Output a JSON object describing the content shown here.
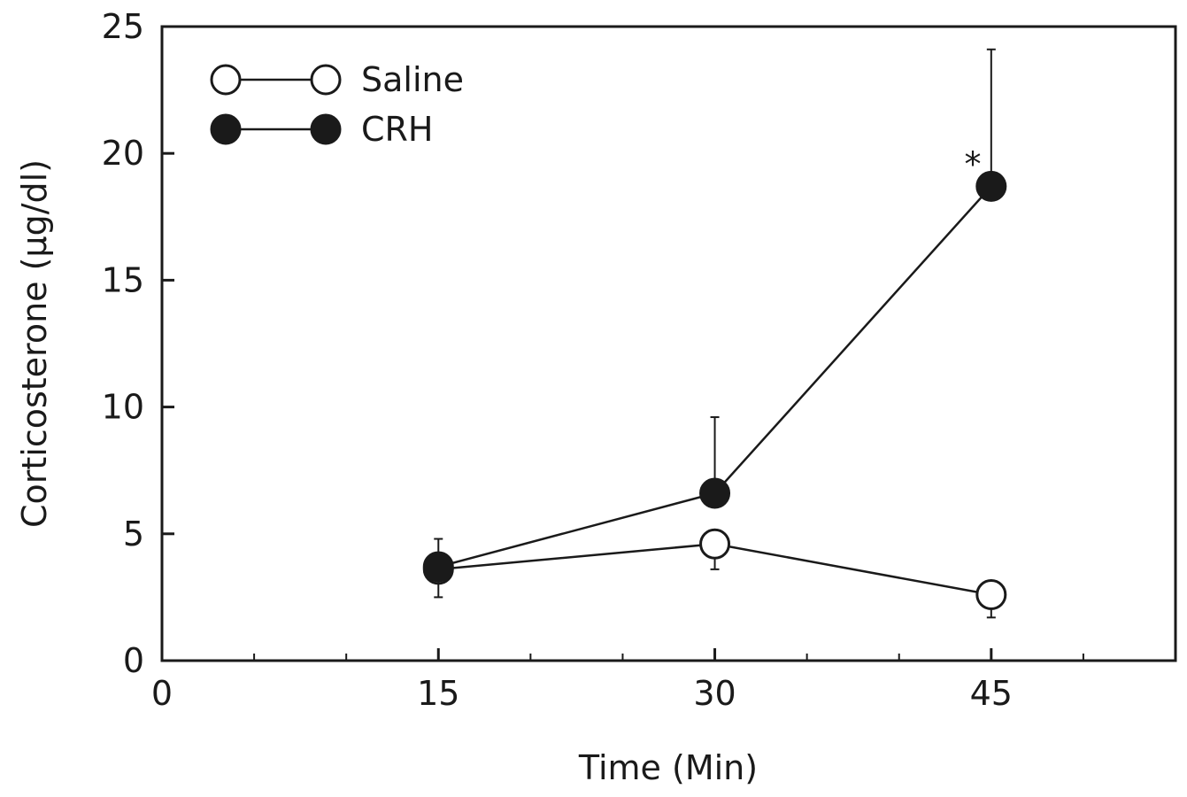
{
  "chart_data": {
    "type": "line",
    "title": "",
    "xlabel": "Time  (Min)",
    "ylabel": "Corticosterone (µg/dl)",
    "xlim": [
      0,
      55
    ],
    "ylim": [
      0,
      25
    ],
    "xticks": [
      0,
      15,
      30,
      45
    ],
    "xtick_labels": [
      "0",
      "15",
      "30",
      "45"
    ],
    "yticks": [
      0,
      5,
      10,
      15,
      20,
      25
    ],
    "ytick_labels": [
      "0",
      "5",
      "10",
      "15",
      "20",
      "25"
    ],
    "grid": false,
    "legend": "top-left",
    "series": [
      {
        "name": "Saline",
        "marker": "open-circle",
        "color": "#1a1a1a",
        "x": [
          15,
          30,
          45
        ],
        "y": [
          3.6,
          4.6,
          2.6
        ],
        "err_low": [
          1.1,
          1.0,
          0.9
        ],
        "err_high": [
          0,
          0,
          0
        ]
      },
      {
        "name": "CRH",
        "marker": "filled-circle",
        "color": "#1a1a1a",
        "x": [
          15,
          30,
          45
        ],
        "y": [
          3.7,
          6.6,
          18.7
        ],
        "err_low": [
          0,
          0,
          0
        ],
        "err_high": [
          1.1,
          3.0,
          5.4
        ]
      }
    ],
    "annotations": [
      {
        "text": "*",
        "x": 44.0,
        "y": 19.6
      }
    ]
  }
}
